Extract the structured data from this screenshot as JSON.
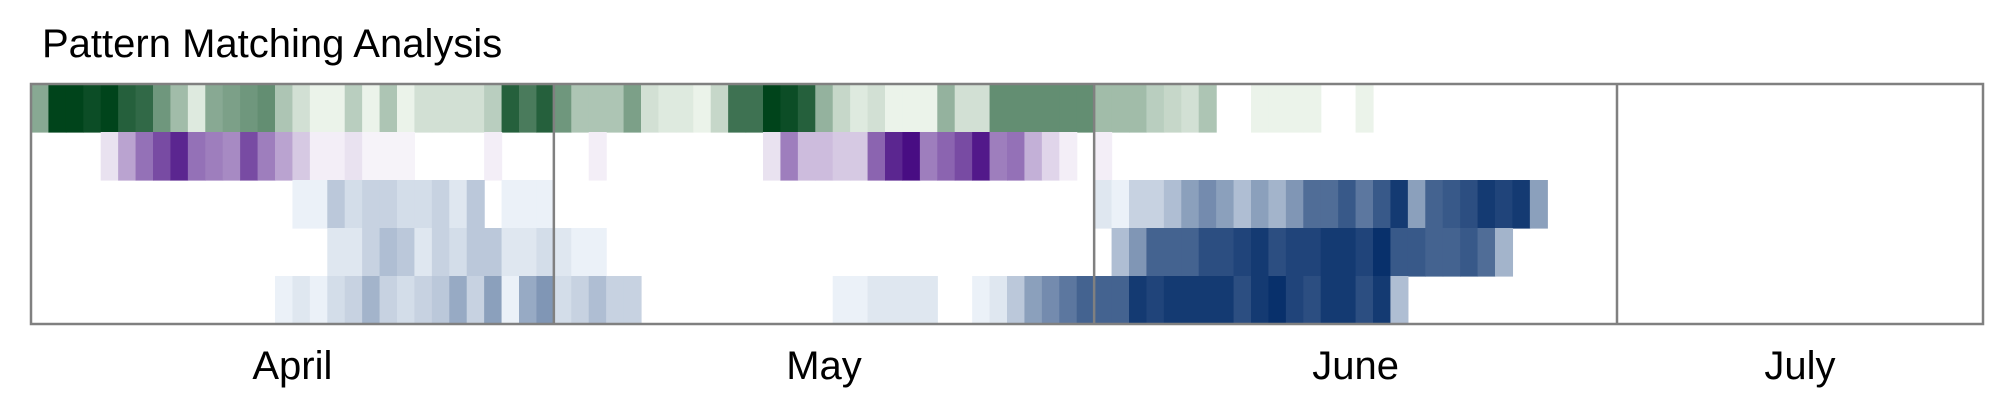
{
  "chart_data": {
    "type": "heatmap",
    "title": "Pattern Matching Analysis",
    "xlabel": "",
    "ylabel": "",
    "x_axis": "days, 2020-04-01 to 2020-07-21 (one column per day)",
    "month_labels": [
      "April",
      "May",
      "June",
      "July"
    ],
    "month_day_counts": [
      30,
      31,
      30,
      21
    ],
    "color_scales": {
      "row_0": [
        "#f7fcf5",
        "#00441b"
      ],
      "row_1": [
        "#fcfbfd",
        "#3f007d"
      ],
      "rows_2_4": [
        "#f7fbff",
        "#08306b"
      ]
    },
    "rows": [
      {
        "values": [
          0.45,
          1.0,
          1.0,
          0.95,
          1.0,
          0.85,
          0.8,
          0.55,
          0.35,
          0.1,
          0.45,
          0.5,
          0.55,
          0.6,
          0.3,
          0.15,
          0.05,
          0.05,
          0.25,
          0.05,
          0.3,
          0.05,
          0.15,
          0.15,
          0.15,
          0.15,
          0.25,
          0.85,
          0.7,
          0.85,
          0.55,
          0.3,
          0.3,
          0.3,
          0.5,
          0.15,
          0.1,
          0.1,
          0.05,
          0.2,
          0.75,
          0.75,
          1.0,
          0.95,
          0.85,
          0.4,
          0.2,
          0.1,
          0.15,
          0.05,
          0.05,
          0.05,
          0.4,
          0.15,
          0.15,
          0.6,
          0.6,
          0.6,
          0.6,
          0.6,
          0.6,
          0.35,
          0.35,
          0.35,
          0.25,
          0.2,
          0.15,
          0.3,
          0,
          0,
          0.05,
          0.05,
          0.05,
          0.05,
          0,
          0,
          0.05,
          0,
          0,
          0,
          0,
          0,
          0,
          0,
          0,
          0,
          0,
          0,
          0,
          0,
          0,
          0,
          0,
          0,
          0,
          0,
          0,
          0,
          0,
          0,
          0,
          0,
          0,
          0,
          0,
          0,
          0,
          0,
          0,
          0,
          0
        ]
      },
      {
        "values": [
          0,
          0,
          0,
          0,
          0.1,
          0.35,
          0.55,
          0.7,
          0.85,
          0.55,
          0.5,
          0.45,
          0.7,
          0.5,
          0.35,
          0.2,
          0.05,
          0.05,
          0.1,
          0.03,
          0.03,
          0.03,
          0,
          0,
          0,
          0,
          0.05,
          0,
          0,
          0,
          0,
          0,
          0.05,
          0,
          0,
          0,
          0,
          0,
          0,
          0,
          0,
          0,
          0.1,
          0.5,
          0.25,
          0.25,
          0.2,
          0.2,
          0.6,
          0.85,
          0.95,
          0.5,
          0.6,
          0.7,
          0.9,
          0.5,
          0.55,
          0.3,
          0.15,
          0.05,
          0,
          0.05,
          0,
          0,
          0,
          0,
          0,
          0,
          0,
          0,
          0,
          0,
          0,
          0,
          0,
          0,
          0,
          0,
          0,
          0,
          0,
          0,
          0,
          0,
          0,
          0,
          0,
          0,
          0,
          0,
          0,
          0,
          0,
          0,
          0,
          0,
          0,
          0,
          0,
          0,
          0,
          0,
          0,
          0,
          0,
          0,
          0,
          0,
          0,
          0,
          0
        ]
      },
      {
        "values": [
          0,
          0,
          0,
          0,
          0,
          0,
          0,
          0,
          0,
          0,
          0,
          0,
          0,
          0,
          0,
          0.05,
          0.05,
          0.25,
          0.15,
          0.2,
          0.2,
          0.15,
          0.15,
          0.2,
          0.1,
          0.25,
          0,
          0.05,
          0.05,
          0.05,
          0,
          0,
          0,
          0,
          0,
          0,
          0,
          0,
          0,
          0,
          0,
          0,
          0,
          0,
          0,
          0,
          0,
          0,
          0,
          0,
          0,
          0,
          0,
          0,
          0,
          0,
          0,
          0,
          0,
          0,
          0,
          0.1,
          0.05,
          0.2,
          0.2,
          0.3,
          0.45,
          0.55,
          0.45,
          0.3,
          0.45,
          0.35,
          0.5,
          0.7,
          0.7,
          0.8,
          0.65,
          0.8,
          0.95,
          0.45,
          0.75,
          0.8,
          0.85,
          0.95,
          0.9,
          0.95,
          0.45,
          0,
          0,
          0,
          0,
          0,
          0,
          0,
          0,
          0,
          0,
          0,
          0,
          0,
          0,
          0,
          0,
          0,
          0,
          0,
          0,
          0,
          0,
          0,
          0
        ]
      },
      {
        "values": [
          0,
          0,
          0,
          0,
          0,
          0,
          0,
          0,
          0,
          0,
          0,
          0,
          0,
          0,
          0,
          0,
          0,
          0.1,
          0.1,
          0.2,
          0.3,
          0.25,
          0.1,
          0.2,
          0.15,
          0.25,
          0.25,
          0.1,
          0.1,
          0.15,
          0.1,
          0.05,
          0.05,
          0,
          0,
          0,
          0,
          0,
          0,
          0,
          0,
          0,
          0,
          0,
          0,
          0,
          0,
          0,
          0,
          0,
          0,
          0,
          0,
          0,
          0,
          0,
          0,
          0,
          0,
          0,
          0,
          0,
          0.3,
          0.5,
          0.75,
          0.75,
          0.75,
          0.85,
          0.85,
          0.9,
          0.95,
          0.85,
          0.9,
          0.9,
          0.95,
          0.95,
          0.9,
          1.0,
          0.8,
          0.8,
          0.75,
          0.75,
          0.8,
          0.7,
          0.35,
          0,
          0,
          0,
          0,
          0,
          0,
          0,
          0,
          0,
          0,
          0,
          0,
          0,
          0,
          0,
          0,
          0,
          0,
          0,
          0,
          0,
          0,
          0,
          0,
          0,
          0
        ]
      },
      {
        "values": [
          0,
          0,
          0,
          0,
          0,
          0,
          0,
          0,
          0,
          0,
          0,
          0,
          0,
          0,
          0.05,
          0.1,
          0.05,
          0.15,
          0.2,
          0.35,
          0.2,
          0.15,
          0.2,
          0.25,
          0.4,
          0.2,
          0.45,
          0.05,
          0.4,
          0.5,
          0.15,
          0.2,
          0.3,
          0.2,
          0.2,
          0,
          0,
          0,
          0,
          0,
          0,
          0,
          0,
          0,
          0,
          0,
          0.05,
          0.05,
          0.1,
          0.1,
          0.1,
          0.1,
          0,
          0,
          0.05,
          0.1,
          0.25,
          0.45,
          0.55,
          0.65,
          0.75,
          0.75,
          0.75,
          0.95,
          0.9,
          0.95,
          0.95,
          0.95,
          0.95,
          0.85,
          0.95,
          1.0,
          0.9,
          0.85,
          0.95,
          0.95,
          0.85,
          0.95,
          0.3,
          0,
          0,
          0,
          0,
          0,
          0,
          0,
          0,
          0,
          0,
          0,
          0,
          0,
          0,
          0,
          0,
          0,
          0,
          0,
          0,
          0,
          0,
          0,
          0,
          0,
          0,
          0,
          0,
          0,
          0,
          0,
          0
        ]
      }
    ]
  }
}
